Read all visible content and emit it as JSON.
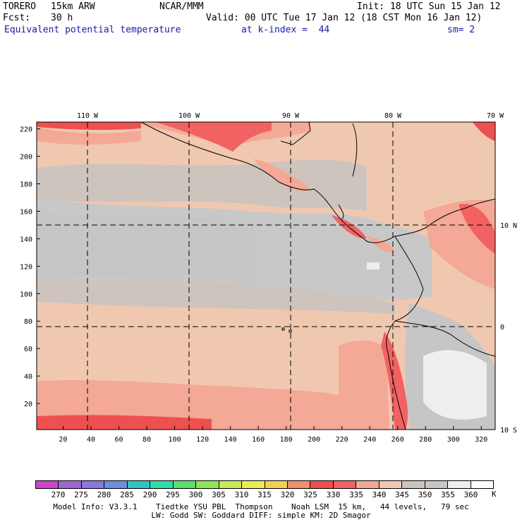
{
  "header": {
    "model": "TORERO",
    "resolution": "15km ARW",
    "org": "NCAR/MMM",
    "init": "Init: 18 UTC Sun 15 Jan 12",
    "fcst_label": "Fcst:",
    "fcst_value": "30 h",
    "valid": "Valid: 00 UTC Tue 17 Jan 12 (18 CST Mon 16 Jan 12)",
    "field": "Equivalent potential temperature",
    "level": "at k-index =  44",
    "smooth": "sm= 2"
  },
  "map": {
    "x_ticks": [
      "20",
      "40",
      "60",
      "80",
      "100",
      "120",
      "140",
      "160",
      "180",
      "200",
      "220",
      "240",
      "260",
      "280",
      "300",
      "320"
    ],
    "y_ticks": [
      "20",
      "40",
      "60",
      "80",
      "100",
      "120",
      "140",
      "160",
      "180",
      "200",
      "220"
    ],
    "lon_labels": [
      "110 W",
      "100 W",
      "90 W",
      "80 W",
      "70 W"
    ],
    "lat_labels": [
      "10 N",
      "0",
      "10 S"
    ]
  },
  "colorbar": {
    "unit": "K",
    "labels": [
      "270",
      "275",
      "280",
      "285",
      "290",
      "295",
      "300",
      "305",
      "310",
      "315",
      "320",
      "325",
      "330",
      "335",
      "340",
      "345",
      "350",
      "355",
      "360"
    ],
    "colors": [
      "#cc44cc",
      "#a066d0",
      "#8a76e0",
      "#6a8ee0",
      "#30c4c4",
      "#32dca8",
      "#5ae070",
      "#8ee656",
      "#c8ec54",
      "#eaec54",
      "#f4d050",
      "#f09068",
      "#ee5050",
      "#f26262",
      "#f4a896",
      "#f0c8b0",
      "#cec4be",
      "#c6c6c6",
      "#eeeeee",
      "#ffffff"
    ]
  },
  "footer": {
    "line1": "Model Info: V3.3.1    Tiedtke YSU PBL  Thompson    Noah LSM  15 km,   44 levels,   79 sec",
    "line2": "LW: Godd SW: Goddard DIFF: simple KM: 2D Smagor"
  }
}
